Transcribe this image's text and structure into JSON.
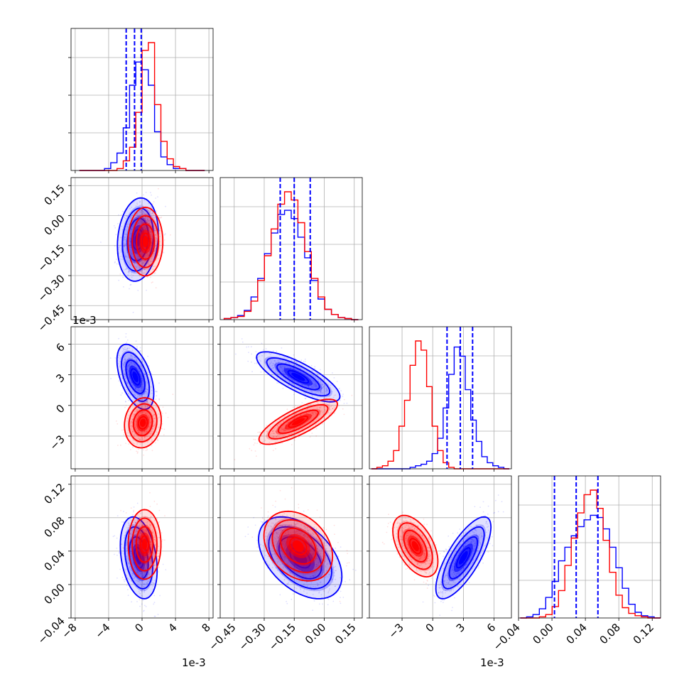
{
  "chart_data": {
    "type": "corner",
    "series": [
      {
        "name": "",
        "color": "#0000ff"
      },
      {
        "name": "",
        "color": "#ff0000"
      }
    ],
    "grid": true,
    "quantile_line_style": "dashed",
    "quantile_color": "#0000ff",
    "params": [
      {
        "offset_label": "1e-3",
        "range": [
          -8.5,
          8.5
        ],
        "ticks": [
          -8,
          -4,
          0,
          4,
          8
        ],
        "tick_labels": [
          "−8",
          "−4",
          "0",
          "4",
          "8"
        ],
        "quantiles": [
          -1.9,
          -0.9,
          -0.1
        ]
      },
      {
        "range": [
          -0.52,
          0.19
        ],
        "ticks": [
          -0.45,
          -0.3,
          -0.15,
          0.0,
          0.15
        ],
        "tick_labels": [
          "−0.45",
          "−0.30",
          "−0.15",
          "0.00",
          "0.15"
        ],
        "quantiles": [
          -0.22,
          -0.15,
          -0.07
        ]
      },
      {
        "offset_label": "1e-3",
        "range": [
          -6.2,
          7.7
        ],
        "ticks": [
          -3,
          0,
          3,
          6
        ],
        "tick_labels": [
          "−3",
          "0",
          "3",
          "6"
        ],
        "quantiles": [
          1.4,
          2.7,
          3.9
        ]
      },
      {
        "range": [
          -0.04,
          0.13
        ],
        "ticks": [
          -0.04,
          0.0,
          0.04,
          0.08,
          0.12
        ],
        "tick_labels": [
          "−0.04",
          "0.00",
          "0.04",
          "0.08",
          "0.12"
        ],
        "quantiles": [
          0.003,
          0.029,
          0.055
        ]
      }
    ],
    "histograms": [
      {
        "param": 0,
        "bins": [
          -7.5,
          7.5
        ],
        "blue": [
          0,
          0,
          0,
          0,
          1,
          4,
          9,
          22,
          44,
          56,
          52,
          44,
          20,
          7,
          3,
          1,
          1,
          0,
          0,
          0
        ],
        "red": [
          0,
          0,
          0,
          0,
          0,
          0,
          1,
          5,
          12,
          30,
          62,
          66,
          34,
          15,
          6,
          2,
          1,
          0,
          0,
          0
        ]
      },
      {
        "param": 1,
        "bins": [
          -0.5,
          0.17
        ],
        "blue": [
          1,
          2,
          4,
          9,
          22,
          40,
          64,
          84,
          102,
          106,
          98,
          80,
          60,
          38,
          20,
          10,
          5,
          2,
          1,
          0
        ],
        "red": [
          1,
          2,
          3,
          8,
          18,
          38,
          62,
          88,
          112,
          124,
          116,
          94,
          66,
          40,
          22,
          10,
          5,
          2,
          1,
          0
        ]
      },
      {
        "param": 2,
        "bins": [
          -6.0,
          7.5
        ],
        "blue": [
          0,
          0,
          0,
          0,
          0,
          0,
          0,
          1,
          2,
          3,
          5,
          10,
          20,
          40,
          62,
          80,
          74,
          52,
          32,
          18,
          8,
          4,
          2,
          1,
          0
        ],
        "red": [
          0,
          1,
          2,
          5,
          12,
          28,
          45,
          68,
          84,
          78,
          54,
          28,
          12,
          4,
          1,
          0,
          0,
          0,
          0,
          0,
          0,
          0,
          0,
          0,
          0
        ]
      },
      {
        "param": 3,
        "bins": [
          -0.038,
          0.13
        ],
        "blue": [
          0,
          1,
          3,
          8,
          18,
          32,
          50,
          62,
          72,
          80,
          86,
          90,
          88,
          78,
          62,
          44,
          26,
          12,
          5,
          2,
          1,
          0
        ],
        "red": [
          0,
          0,
          0,
          1,
          3,
          10,
          24,
          46,
          70,
          92,
          108,
          112,
          96,
          68,
          40,
          20,
          9,
          4,
          2,
          1,
          0,
          0
        ]
      }
    ],
    "pairs": [
      {
        "x": 0,
        "y": 1,
        "blue": {
          "mean": [
            -0.5,
            -0.12
          ],
          "sd": [
            1.0,
            0.085
          ],
          "corr": 0.15
        },
        "red": {
          "mean": [
            0.4,
            -0.13
          ],
          "sd": [
            0.85,
            0.07
          ],
          "corr": 0.0
        }
      },
      {
        "x": 0,
        "y": 2,
        "blue": {
          "mean": [
            -0.8,
            2.8
          ],
          "sd": [
            0.9,
            1.3
          ],
          "corr": -0.5
        },
        "red": {
          "mean": [
            0.1,
            -1.7
          ],
          "sd": [
            0.9,
            1.0
          ],
          "corr": 0.1
        }
      },
      {
        "x": 1,
        "y": 2,
        "blue": {
          "mean": [
            -0.13,
            2.8
          ],
          "sd": [
            0.085,
            1.0
          ],
          "corr": -0.78
        },
        "red": {
          "mean": [
            -0.13,
            -1.6
          ],
          "sd": [
            0.08,
            0.9
          ],
          "corr": 0.78
        }
      },
      {
        "x": 0,
        "y": 3,
        "blue": {
          "mean": [
            -0.4,
            0.032
          ],
          "sd": [
            0.9,
            0.02
          ],
          "corr": -0.3
        },
        "red": {
          "mean": [
            0.3,
            0.048
          ],
          "sd": [
            0.8,
            0.017
          ],
          "corr": 0.0
        }
      },
      {
        "x": 1,
        "y": 3,
        "blue": {
          "mean": [
            -0.12,
            0.032
          ],
          "sd": [
            0.085,
            0.02
          ],
          "corr": -0.45
        },
        "red": {
          "mean": [
            -0.13,
            0.046
          ],
          "sd": [
            0.07,
            0.017
          ],
          "corr": -0.3
        }
      },
      {
        "x": 2,
        "y": 3,
        "blue": {
          "mean": [
            3.0,
            0.032
          ],
          "sd": [
            1.1,
            0.02
          ],
          "corr": 0.75
        },
        "red": {
          "mean": [
            -1.7,
            0.046
          ],
          "sd": [
            0.9,
            0.015
          ],
          "corr": -0.5
        }
      }
    ]
  }
}
